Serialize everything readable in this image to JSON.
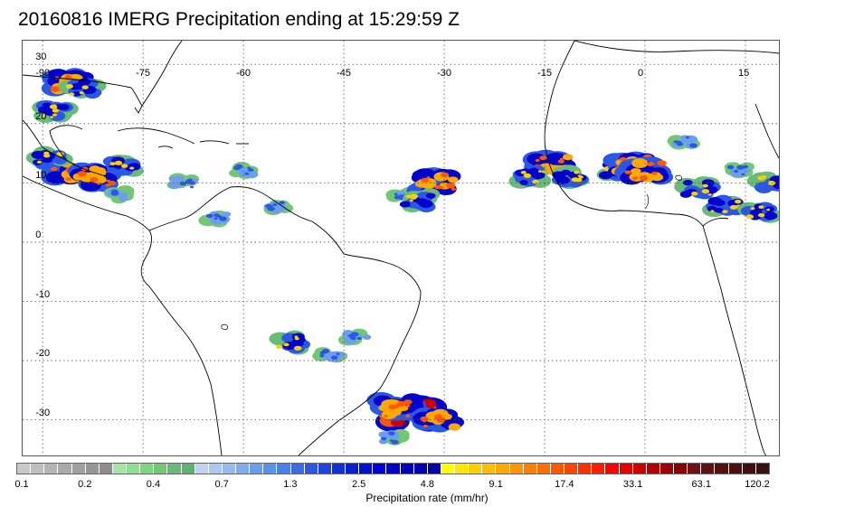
{
  "title": "20160816 IMERG Precipitation ending at 15:29:59 Z",
  "map": {
    "lon_labels": [
      "-90",
      "-75",
      "-60",
      "-45",
      "-30",
      "-15",
      "0",
      "15"
    ],
    "lon_values": [
      -90,
      -75,
      -60,
      -45,
      -30,
      -15,
      0,
      15
    ],
    "lat_labels": [
      "30",
      "20",
      "10",
      "0",
      "-10",
      "-20",
      "-30"
    ],
    "lat_values": [
      30,
      20,
      10,
      0,
      -10,
      -20,
      -30
    ],
    "lon_range": [
      -93,
      20
    ],
    "lat_range": [
      34,
      -36
    ],
    "grid": "dotted",
    "coastline_color": "#000000"
  },
  "colorbar": {
    "label": "Precipitation rate (mm/hr)",
    "tick_labels": [
      "0.1",
      "0.2",
      "0.4",
      "0.7",
      "1.3",
      "2.5",
      "4.8",
      "9.1",
      "17.4",
      "33.1",
      "63.1",
      "120.2"
    ],
    "colors": [
      "#c8c8c8",
      "#bebebe",
      "#b4b4b4",
      "#aaaaaa",
      "#a0a0a0",
      "#969696",
      "#8c8c8c",
      "#a4e6a4",
      "#8ee08e",
      "#7cd67c",
      "#72c872",
      "#68bc78",
      "#60b070",
      "#c0d4f2",
      "#aac8f2",
      "#94baf0",
      "#80acee",
      "#6c9ef0",
      "#5a90ee",
      "#4a80ec",
      "#3a6ce8",
      "#2a58e4",
      "#1c44e0",
      "#1030da",
      "#0820d2",
      "#0010d0",
      "#0000d8",
      "#0000cc",
      "#0000c0",
      "#0000b4",
      "#0000a8",
      "#ffff00",
      "#ffe600",
      "#ffd000",
      "#ffbc00",
      "#ffa800",
      "#ff9400",
      "#ff8000",
      "#ff6c00",
      "#ff5800",
      "#ff4400",
      "#ff3000",
      "#ff1c00",
      "#ff0000",
      "#e80000",
      "#d00000",
      "#b80000",
      "#a00000",
      "#880000",
      "#701010",
      "#601010",
      "#541010",
      "#4a1010",
      "#401010",
      "#3a1010"
    ]
  },
  "precip_cells": [
    {
      "lon": -86,
      "lat": 27,
      "level": 3
    },
    {
      "lon": -84,
      "lat": 26,
      "level": 2
    },
    {
      "lon": -88,
      "lat": 22,
      "level": 2
    },
    {
      "lon": -86,
      "lat": 12,
      "level": 3
    },
    {
      "lon": -89,
      "lat": 14,
      "level": 2
    },
    {
      "lon": -78,
      "lat": 13,
      "level": 2
    },
    {
      "lon": -82,
      "lat": 11,
      "level": 3
    },
    {
      "lon": -78,
      "lat": 8,
      "level": 1
    },
    {
      "lon": -55,
      "lat": 6,
      "level": 1
    },
    {
      "lon": -36,
      "lat": 8,
      "level": 1
    },
    {
      "lon": -31,
      "lat": 10,
      "level": 3
    },
    {
      "lon": -34,
      "lat": 7,
      "level": 2
    },
    {
      "lon": -14,
      "lat": 13,
      "level": 3
    },
    {
      "lon": -17,
      "lat": 11,
      "level": 2
    },
    {
      "lon": -11,
      "lat": 11,
      "level": 2
    },
    {
      "lon": -4,
      "lat": 12,
      "level": 2
    },
    {
      "lon": -2,
      "lat": 13,
      "level": 3
    },
    {
      "lon": 0,
      "lat": 12,
      "level": 3
    },
    {
      "lon": 8,
      "lat": 9,
      "level": 2
    },
    {
      "lon": 12,
      "lat": 6,
      "level": 2
    },
    {
      "lon": 17,
      "lat": 5,
      "level": 2
    },
    {
      "lon": 19,
      "lat": 10,
      "level": 2
    },
    {
      "lon": -53,
      "lat": -17,
      "level": 2
    },
    {
      "lon": -47,
      "lat": -19,
      "level": 1
    },
    {
      "lon": -43,
      "lat": -16,
      "level": 1
    },
    {
      "lon": -35,
      "lat": -29,
      "level": 4
    },
    {
      "lon": -37,
      "lat": -28,
      "level": 3
    },
    {
      "lon": -31,
      "lat": -30,
      "level": 3
    },
    {
      "lon": -38,
      "lat": -33,
      "level": 1
    },
    {
      "lon": -64,
      "lat": 4,
      "level": 1
    },
    {
      "lon": -69,
      "lat": 10,
      "level": 1
    },
    {
      "lon": -60,
      "lat": 12,
      "level": 1
    },
    {
      "lon": 6,
      "lat": 17,
      "level": 1
    },
    {
      "lon": 14,
      "lat": 12,
      "level": 1
    }
  ]
}
